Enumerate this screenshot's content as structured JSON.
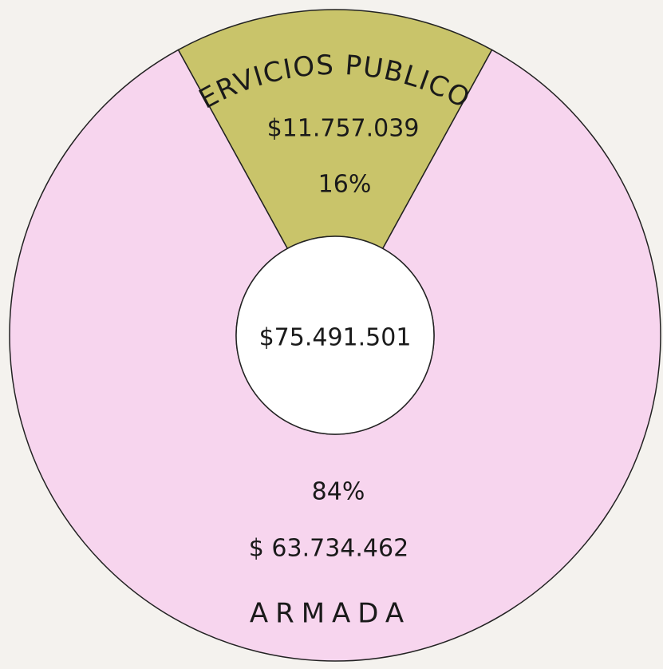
{
  "chart_data": {
    "type": "donut",
    "categories": [
      "SERVICIOS PUBLICOS",
      "ARMADA"
    ],
    "values": [
      16,
      84
    ],
    "value_labels": [
      "16%",
      "84%"
    ],
    "amount_labels": [
      "$11.757.039",
      "$ 63.734.462"
    ],
    "colors": [
      "#c9c46a",
      "#f7d5ee"
    ],
    "total_label": "$75.491.501"
  }
}
